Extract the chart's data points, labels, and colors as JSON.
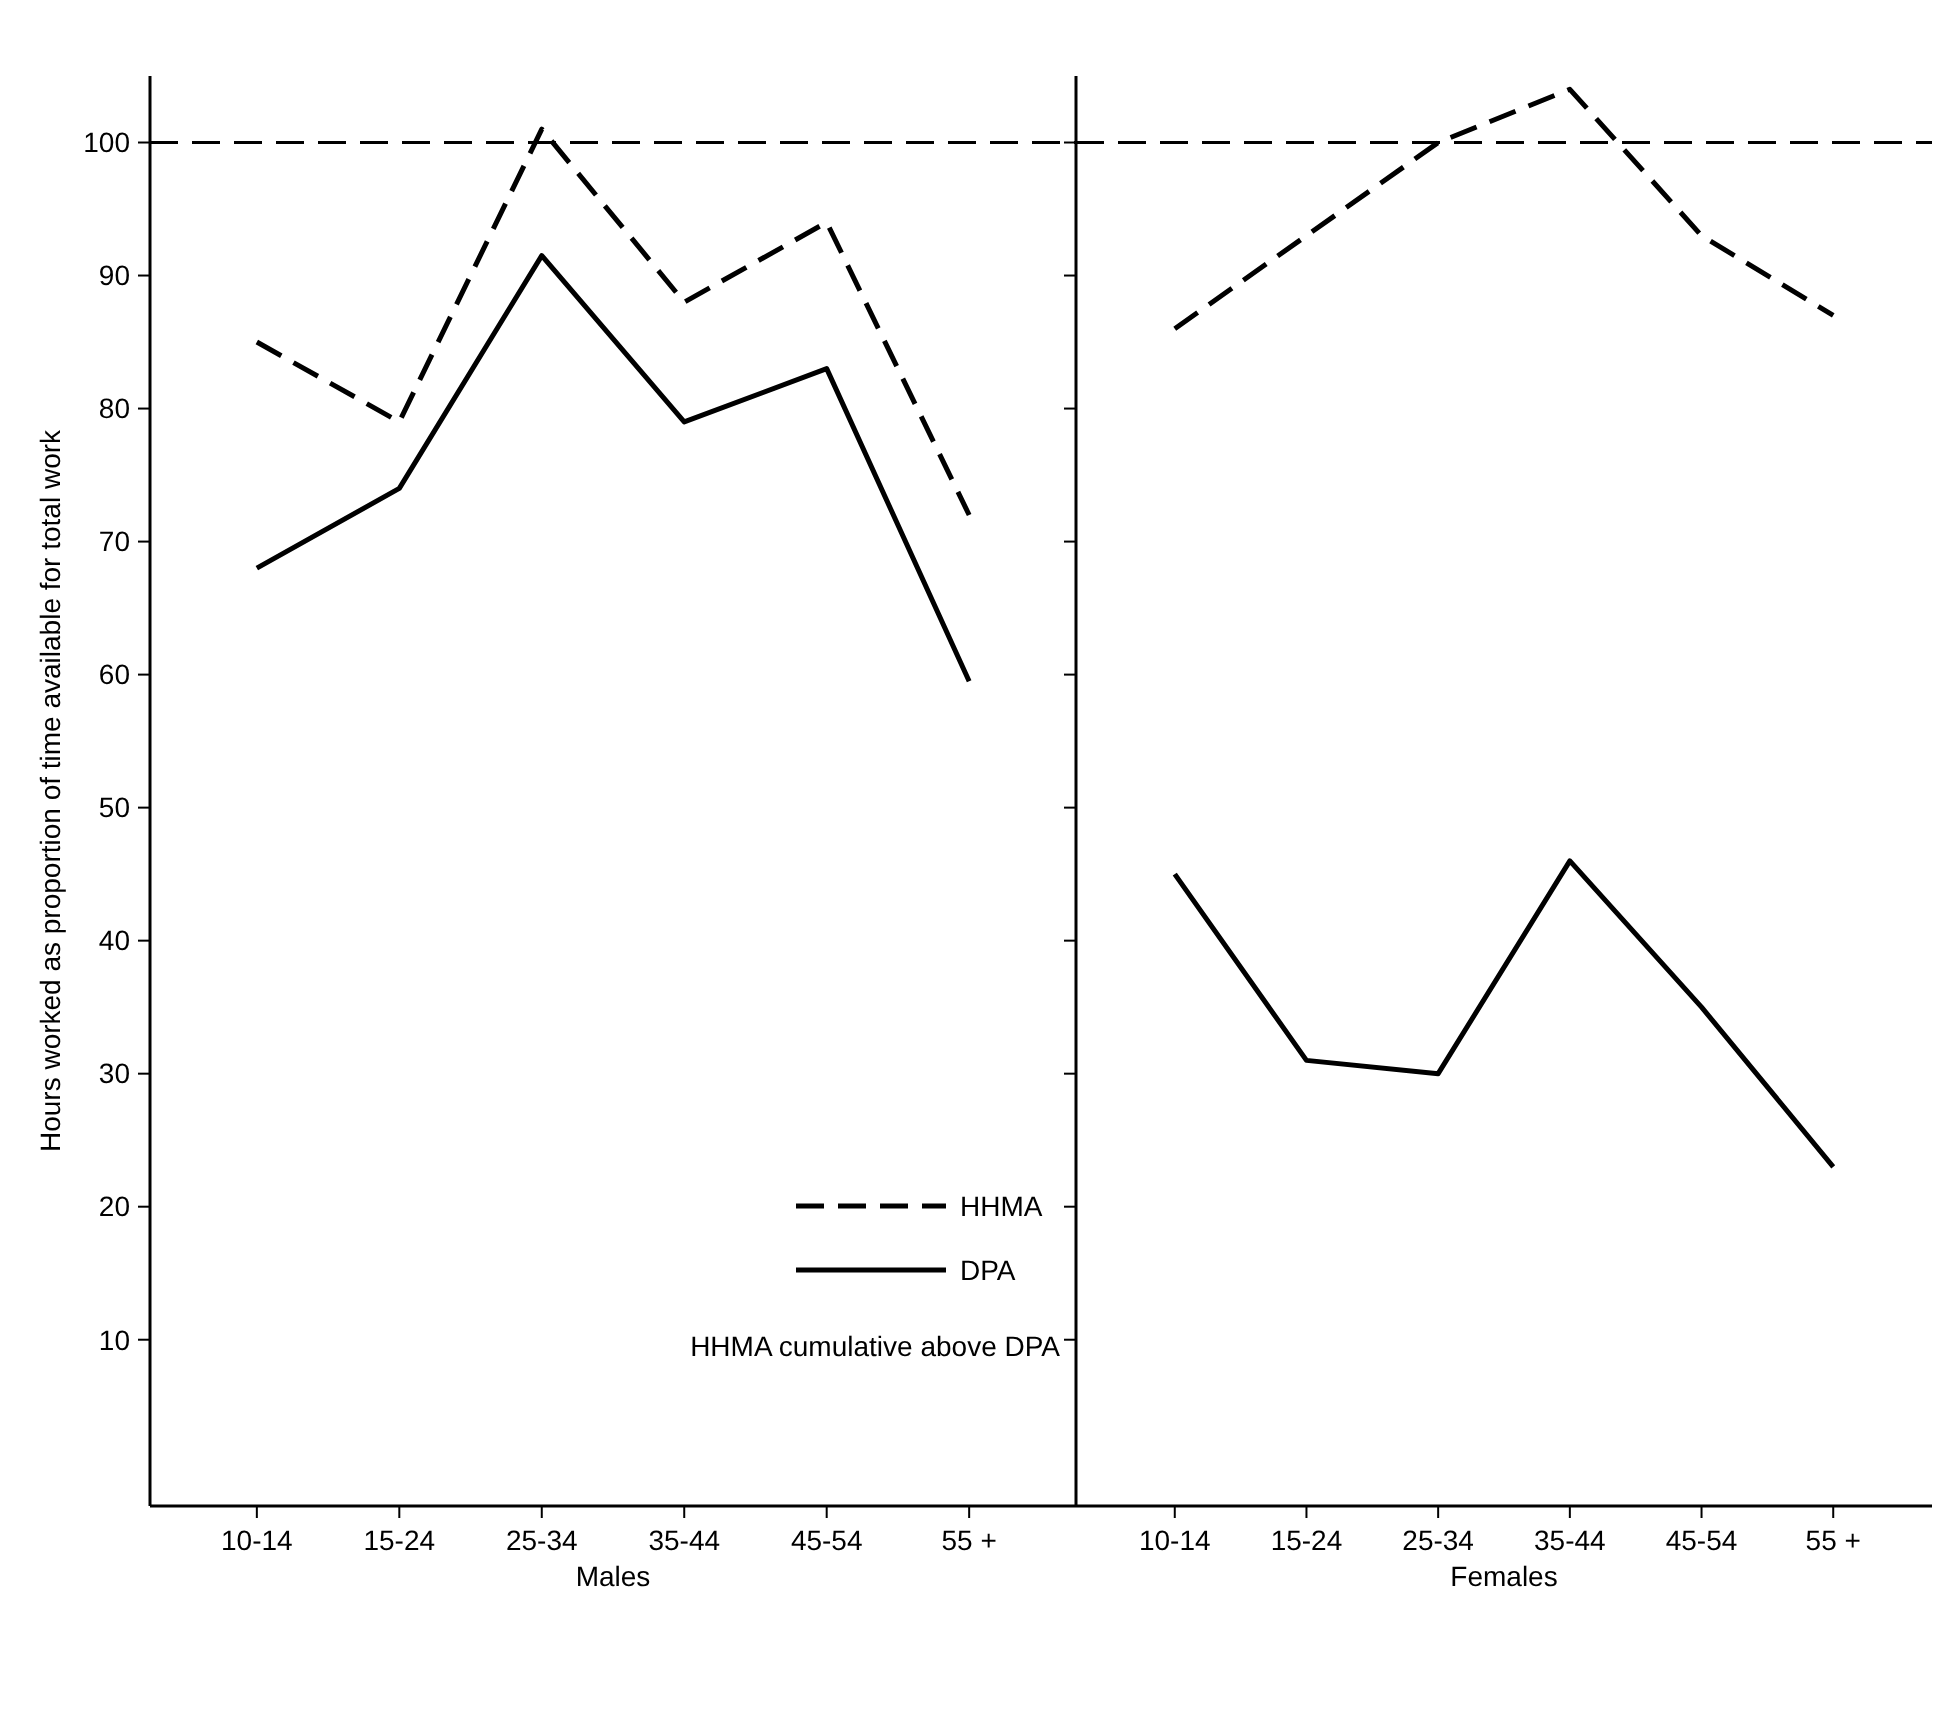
{
  "chart_data": [
    {
      "type": "line",
      "xlabel": "Males",
      "ylabel": "Hours worked as proportion of time available for total work",
      "categories": [
        "10-14",
        "15-24",
        "25-34",
        "35-44",
        "45-54",
        "55 +"
      ],
      "ylim": [
        -2.5,
        105
      ],
      "yticks": [
        10,
        20,
        30,
        40,
        50,
        60,
        70,
        80,
        90,
        100
      ],
      "grid": false,
      "legend": "bottom right",
      "series": [
        {
          "name": "HHMA",
          "color": "#000000",
          "line_style": "dashed",
          "values": [
            85,
            79,
            101,
            88,
            94,
            72
          ]
        },
        {
          "name": "DPA",
          "color": "#000000",
          "line_style": "solid",
          "values": [
            68,
            74,
            91.5,
            79,
            83,
            59.5
          ]
        }
      ],
      "ref_lines": [
        {
          "axis": "y",
          "value": 100,
          "line_style": "dashed",
          "color": "#000000"
        }
      ],
      "annotations": [
        "HHMA cumulative above DPA"
      ]
    },
    {
      "type": "line",
      "xlabel": "Females",
      "categories": [
        "10-14",
        "15-24",
        "25-34",
        "35-44",
        "45-54",
        "55 +"
      ],
      "ylim": [
        -2.5,
        105
      ],
      "yticks": [
        10,
        20,
        30,
        40,
        50,
        60,
        70,
        80,
        90,
        100
      ],
      "tick_labels": "x",
      "grid": false,
      "series": [
        {
          "color": "#000000",
          "line_style": "dashed",
          "values": [
            86,
            93,
            100,
            104,
            93,
            87
          ]
        },
        {
          "color": "#000000",
          "line_style": "solid",
          "values": [
            45,
            31,
            30,
            46,
            35,
            23
          ]
        }
      ],
      "ref_lines": [
        {
          "axis": "y",
          "value": 100,
          "line_style": "dashed",
          "color": "#000000"
        }
      ]
    }
  ]
}
